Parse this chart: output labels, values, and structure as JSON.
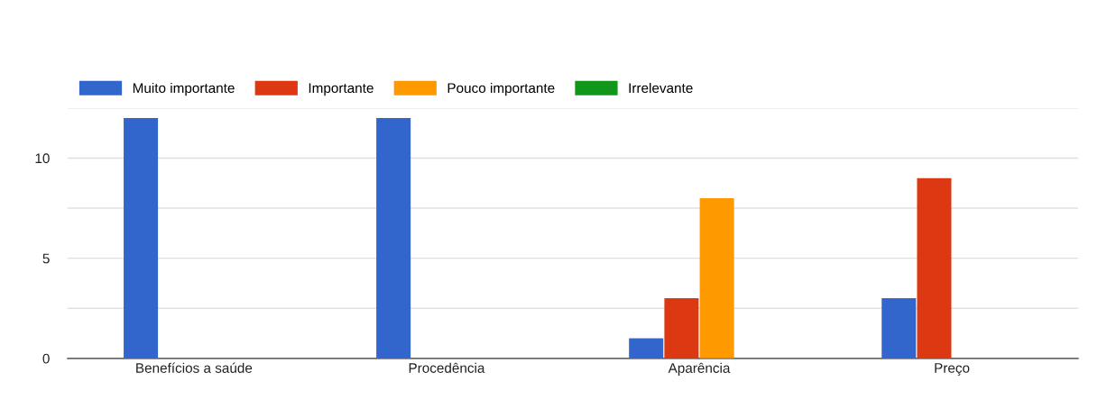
{
  "chart_data": {
    "type": "bar",
    "categories": [
      "Benefícios a saúde",
      "Procedência",
      "Aparência",
      "Preço"
    ],
    "series": [
      {
        "name": "Muito importante",
        "color": "#3366cc",
        "values": [
          12,
          12,
          1,
          3
        ]
      },
      {
        "name": "Importante",
        "color": "#dc3912",
        "values": [
          0,
          0,
          3,
          9
        ]
      },
      {
        "name": "Pouco importante",
        "color": "#ff9900",
        "values": [
          0,
          0,
          8,
          0
        ]
      },
      {
        "name": "Irrelevante",
        "color": "#109618",
        "values": [
          0,
          0,
          0,
          0
        ]
      }
    ],
    "ylim": [
      0,
      12.5
    ],
    "yticks": [
      0,
      {
        "value": 2.5,
        "label": null
      },
      5,
      {
        "value": 7.5,
        "label": null
      },
      10,
      {
        "value": 12.5,
        "label": null
      }
    ],
    "grid": "y",
    "legend": "top left"
  }
}
